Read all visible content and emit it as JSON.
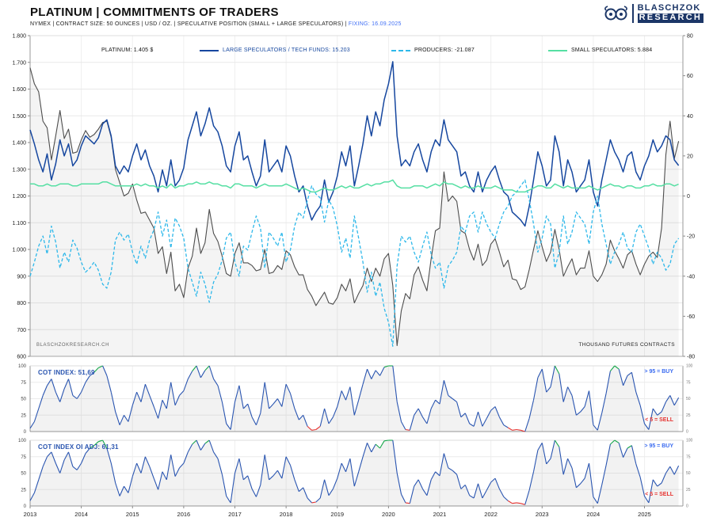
{
  "header": {
    "title": "PLATINUM | COMMITMENTS OF TRADERS",
    "subtitle_meta": "NYMEX  |  CONTRACT SIZE: 50 OUNCES  |  USD / OZ.  |  SPECULATIVE POSITION (SMALL + LARGE SPECULATORS)  |",
    "subtitle_fixing": "FIXING: 16.09.2025",
    "logo_line1": "BLASCHZOK",
    "logo_line2": "RESEARCH"
  },
  "chart_data": [
    {
      "type": "line",
      "title": "PLATINUM | COMMITMENTS OF TRADERS",
      "watermark": "BLASCHZOKRESEARCH.CH",
      "unit_note": "THOUSAND FUTURES CONTRACTS",
      "x_start_year": 2013,
      "x_interval": "monthly",
      "x_end": "2025-09",
      "xticks": [
        2013,
        2014,
        2015,
        2016,
        2017,
        2018,
        2019,
        2020,
        2021,
        2022,
        2023,
        2024,
        2025
      ],
      "grid": true,
      "legend_position": "top",
      "left_axis": {
        "label": "USD / OZ.",
        "min": 600,
        "max": 1800,
        "tick_values": [
          1800,
          1700,
          1600,
          1500,
          1400,
          1300,
          1200,
          1100,
          1000,
          900,
          800,
          700,
          600
        ],
        "tick_labels": [
          "1.800",
          "1.700",
          "1.600",
          "1.500",
          "1.400",
          "1.300",
          "1.200",
          "1.100",
          "1.000",
          "900",
          "800",
          "700",
          "600"
        ]
      },
      "right_axis": {
        "label": "THOUSAND FUTURES CONTRACTS",
        "min": -80,
        "max": 80,
        "tick_values": [
          80,
          60,
          40,
          20,
          0,
          -20,
          -40,
          -60,
          -80
        ],
        "tick_labels": [
          "80",
          "60",
          "40",
          "20",
          "0",
          "-20",
          "-40",
          "-60",
          "-80"
        ]
      },
      "series": [
        {
          "name": "PLATINUM",
          "legend": "PLATINUM: 1.405 $",
          "axis": "left",
          "color": "#4d4d4d",
          "style": "solid",
          "width": 1.1,
          "area": true,
          "values": [
            1680,
            1620,
            1590,
            1480,
            1455,
            1335,
            1425,
            1520,
            1415,
            1450,
            1360,
            1365,
            1410,
            1445,
            1420,
            1430,
            1450,
            1475,
            1480,
            1420,
            1300,
            1250,
            1200,
            1210,
            1245,
            1185,
            1135,
            1140,
            1110,
            1080,
            985,
            1010,
            910,
            990,
            845,
            870,
            820,
            930,
            975,
            1080,
            985,
            1025,
            1150,
            1060,
            1030,
            975,
            910,
            900,
            985,
            1025,
            950,
            950,
            940,
            920,
            925,
            1000,
            910,
            915,
            940,
            925,
            995,
            980,
            935,
            905,
            905,
            850,
            825,
            790,
            815,
            840,
            800,
            795,
            820,
            870,
            845,
            890,
            800,
            835,
            865,
            930,
            880,
            930,
            900,
            965,
            985,
            865,
            640,
            770,
            835,
            815,
            905,
            935,
            885,
            845,
            965,
            1070,
            1080,
            1290,
            1180,
            1200,
            1180,
            1070,
            1060,
            1000,
            960,
            1020,
            940,
            960,
            1020,
            1040,
            990,
            935,
            960,
            890,
            885,
            850,
            860,
            925,
            1000,
            1070,
            1010,
            955,
            990,
            1075,
            1000,
            900,
            935,
            965,
            905,
            930,
            930,
            995,
            900,
            880,
            905,
            945,
            1035,
            995,
            965,
            930,
            980,
            995,
            945,
            905,
            945,
            975,
            990,
            970,
            1080,
            1355,
            1480,
            1340,
            1405
          ]
        },
        {
          "name": "LARGE SPECULATORS / TECH FUNDS",
          "legend": "LARGE SPECULATORS / TECH FUNDS: 15.203",
          "axis": "right",
          "color": "#16479f",
          "style": "solid",
          "width": 1.5,
          "area": false,
          "values": [
            33,
            26,
            18,
            12,
            21,
            8,
            16,
            28,
            20,
            26,
            15,
            18,
            25,
            30,
            28,
            26,
            29,
            36,
            38,
            30,
            15,
            11,
            15,
            12,
            20,
            26,
            18,
            23,
            15,
            10,
            2,
            13,
            5,
            18,
            5,
            8,
            14,
            28,
            35,
            42,
            30,
            36,
            44,
            35,
            32,
            25,
            15,
            12,
            25,
            32,
            18,
            20,
            12,
            5,
            10,
            28,
            12,
            15,
            18,
            12,
            25,
            20,
            10,
            2,
            5,
            -5,
            -12,
            -8,
            -5,
            8,
            -3,
            2,
            10,
            22,
            15,
            25,
            5,
            15,
            26,
            40,
            30,
            42,
            35,
            48,
            56,
            67,
            30,
            15,
            18,
            15,
            22,
            26,
            18,
            12,
            22,
            28,
            25,
            38,
            28,
            25,
            22,
            10,
            12,
            5,
            2,
            12,
            2,
            8,
            12,
            15,
            8,
            2,
            0,
            -8,
            -10,
            -12,
            -15,
            -5,
            8,
            22,
            15,
            5,
            8,
            30,
            22,
            5,
            18,
            12,
            2,
            5,
            8,
            18,
            2,
            -5,
            8,
            18,
            28,
            22,
            18,
            12,
            20,
            22,
            12,
            8,
            15,
            20,
            28,
            22,
            25,
            30,
            28,
            18,
            15.2
          ]
        },
        {
          "name": "PRODUCERS",
          "legend": "PRODUCERS: -21.087",
          "axis": "right",
          "color": "#2eb8ea",
          "style": "dashed",
          "width": 1.3,
          "area": false,
          "values": [
            -40,
            -33,
            -25,
            -20,
            -29,
            -15,
            -23,
            -36,
            -28,
            -33,
            -22,
            -26,
            -33,
            -38,
            -36,
            -33,
            -37,
            -44,
            -46,
            -38,
            -22,
            -18,
            -22,
            -19,
            -28,
            -34,
            -25,
            -31,
            -22,
            -17,
            -8,
            -20,
            -12,
            -26,
            -11,
            -15,
            -21,
            -36,
            -43,
            -50,
            -38,
            -44,
            -53,
            -43,
            -39,
            -32,
            -21,
            -18,
            -33,
            -40,
            -25,
            -27,
            -18,
            -10,
            -16,
            -36,
            -18,
            -21,
            -25,
            -18,
            -33,
            -27,
            -15,
            -8,
            -11,
            -2,
            5,
            1,
            -1,
            -13,
            -2,
            -6,
            -15,
            -28,
            -21,
            -31,
            -10,
            -21,
            -33,
            -48,
            -38,
            -50,
            -43,
            -56,
            -63,
            -75,
            -35,
            -20,
            -23,
            -20,
            -28,
            -33,
            -25,
            -18,
            -29,
            -36,
            -33,
            -46,
            -35,
            -32,
            -28,
            -15,
            -18,
            -10,
            -8,
            -18,
            -8,
            -14,
            -18,
            -21,
            -14,
            -8,
            -5,
            0,
            2,
            5,
            8,
            -2,
            -14,
            -28,
            -21,
            -10,
            -14,
            -36,
            -28,
            -10,
            -24,
            -18,
            -8,
            -11,
            -14,
            -24,
            -8,
            0,
            -14,
            -24,
            -34,
            -28,
            -24,
            -18,
            -26,
            -28,
            -18,
            -14,
            -20,
            -26,
            -34,
            -28,
            -31,
            -37,
            -34,
            -24,
            -21.1
          ]
        },
        {
          "name": "SMALL SPECULATORS",
          "legend": "SMALL SPECULATORS: 5.884",
          "axis": "right",
          "color": "#56dfa3",
          "style": "solid",
          "width": 1.5,
          "area": false,
          "values": [
            6,
            6,
            5,
            5,
            6,
            5,
            5,
            6,
            6,
            6,
            5,
            5,
            6,
            6,
            6,
            6,
            6,
            7,
            7,
            6,
            5,
            5,
            5,
            5,
            5,
            6,
            5,
            6,
            5,
            5,
            4,
            5,
            4,
            6,
            4,
            5,
            5,
            6,
            6,
            7,
            6,
            6,
            7,
            6,
            6,
            5,
            5,
            4,
            6,
            6,
            5,
            5,
            5,
            4,
            5,
            6,
            5,
            5,
            5,
            5,
            6,
            5,
            4,
            3,
            4,
            3,
            2,
            2,
            3,
            4,
            3,
            3,
            4,
            5,
            4,
            5,
            4,
            4,
            5,
            6,
            5,
            6,
            6,
            7,
            7,
            8,
            5,
            4,
            4,
            4,
            5,
            5,
            5,
            4,
            5,
            6,
            5,
            7,
            6,
            6,
            5,
            4,
            5,
            4,
            4,
            5,
            4,
            4,
            4,
            5,
            4,
            3,
            3,
            3,
            2,
            2,
            2,
            3,
            4,
            5,
            5,
            4,
            4,
            6,
            5,
            4,
            5,
            4,
            4,
            4,
            4,
            5,
            4,
            3,
            4,
            5,
            6,
            5,
            5,
            4,
            5,
            5,
            4,
            4,
            5,
            5,
            6,
            5,
            5,
            6,
            6,
            5,
            5.9
          ]
        }
      ]
    },
    {
      "type": "line",
      "name": "COT INDEX",
      "label": "COT INDEX: 51,69",
      "current": 51.69,
      "buy_note": "> 95 = BUY",
      "sell_note": "< 5 = SELL",
      "ylim": [
        0,
        100
      ],
      "yticks": [
        100,
        75,
        50,
        25,
        0
      ],
      "colors": {
        "line": "#2a55b0",
        "buy": "#16a74a",
        "sell": "#e63330"
      },
      "values": [
        5,
        15,
        35,
        55,
        70,
        80,
        60,
        45,
        65,
        80,
        55,
        50,
        60,
        75,
        85,
        90,
        97,
        100,
        85,
        60,
        30,
        10,
        25,
        15,
        40,
        60,
        45,
        72,
        55,
        38,
        20,
        48,
        35,
        75,
        40,
        55,
        62,
        80,
        92,
        100,
        82,
        93,
        100,
        80,
        70,
        45,
        12,
        3,
        45,
        70,
        35,
        42,
        22,
        10,
        28,
        75,
        35,
        42,
        50,
        38,
        72,
        58,
        35,
        18,
        25,
        8,
        2,
        3,
        8,
        35,
        12,
        22,
        38,
        62,
        48,
        68,
        25,
        48,
        72,
        95,
        80,
        93,
        85,
        98,
        100,
        100,
        45,
        15,
        3,
        2,
        25,
        35,
        22,
        12,
        35,
        48,
        42,
        78,
        55,
        50,
        45,
        22,
        28,
        12,
        8,
        30,
        8,
        20,
        32,
        38,
        22,
        10,
        6,
        2,
        3,
        2,
        0,
        20,
        48,
        82,
        95,
        60,
        68,
        100,
        88,
        45,
        68,
        55,
        25,
        30,
        38,
        62,
        10,
        2,
        28,
        58,
        92,
        100,
        95,
        70,
        85,
        90,
        60,
        40,
        12,
        3,
        35,
        25,
        30,
        45,
        55,
        40,
        51.69
      ]
    },
    {
      "type": "line",
      "name": "COT INDEX OI ADJ",
      "label": "COT INDEX OI ADJ: 61,31",
      "current": 61.31,
      "buy_note": "> 95 = BUY",
      "sell_note": "< 5 = SELL",
      "ylim": [
        0,
        100
      ],
      "yticks": [
        100,
        75,
        50,
        25,
        0
      ],
      "colors": {
        "line": "#2a55b0",
        "buy": "#16a74a",
        "sell": "#e63330"
      },
      "values": [
        8,
        20,
        40,
        60,
        75,
        82,
        65,
        50,
        70,
        82,
        60,
        55,
        65,
        80,
        88,
        92,
        98,
        100,
        88,
        65,
        35,
        15,
        30,
        20,
        45,
        65,
        50,
        75,
        60,
        42,
        25,
        52,
        40,
        78,
        45,
        58,
        65,
        82,
        94,
        100,
        85,
        95,
        100,
        82,
        72,
        48,
        15,
        5,
        50,
        72,
        40,
        46,
        26,
        14,
        32,
        78,
        40,
        46,
        54,
        42,
        75,
        62,
        40,
        22,
        28,
        12,
        5,
        6,
        12,
        40,
        16,
        26,
        42,
        65,
        52,
        72,
        30,
        52,
        75,
        96,
        82,
        94,
        88,
        99,
        100,
        100,
        50,
        18,
        5,
        4,
        30,
        40,
        26,
        16,
        40,
        52,
        46,
        80,
        58,
        54,
        48,
        26,
        32,
        16,
        12,
        34,
        12,
        24,
        36,
        42,
        26,
        14,
        8,
        4,
        5,
        4,
        2,
        24,
        52,
        85,
        96,
        64,
        72,
        100,
        90,
        48,
        72,
        58,
        28,
        34,
        42,
        65,
        14,
        4,
        32,
        62,
        94,
        100,
        96,
        74,
        88,
        92,
        64,
        44,
        15,
        5,
        40,
        30,
        35,
        50,
        60,
        48,
        61.31
      ]
    }
  ]
}
